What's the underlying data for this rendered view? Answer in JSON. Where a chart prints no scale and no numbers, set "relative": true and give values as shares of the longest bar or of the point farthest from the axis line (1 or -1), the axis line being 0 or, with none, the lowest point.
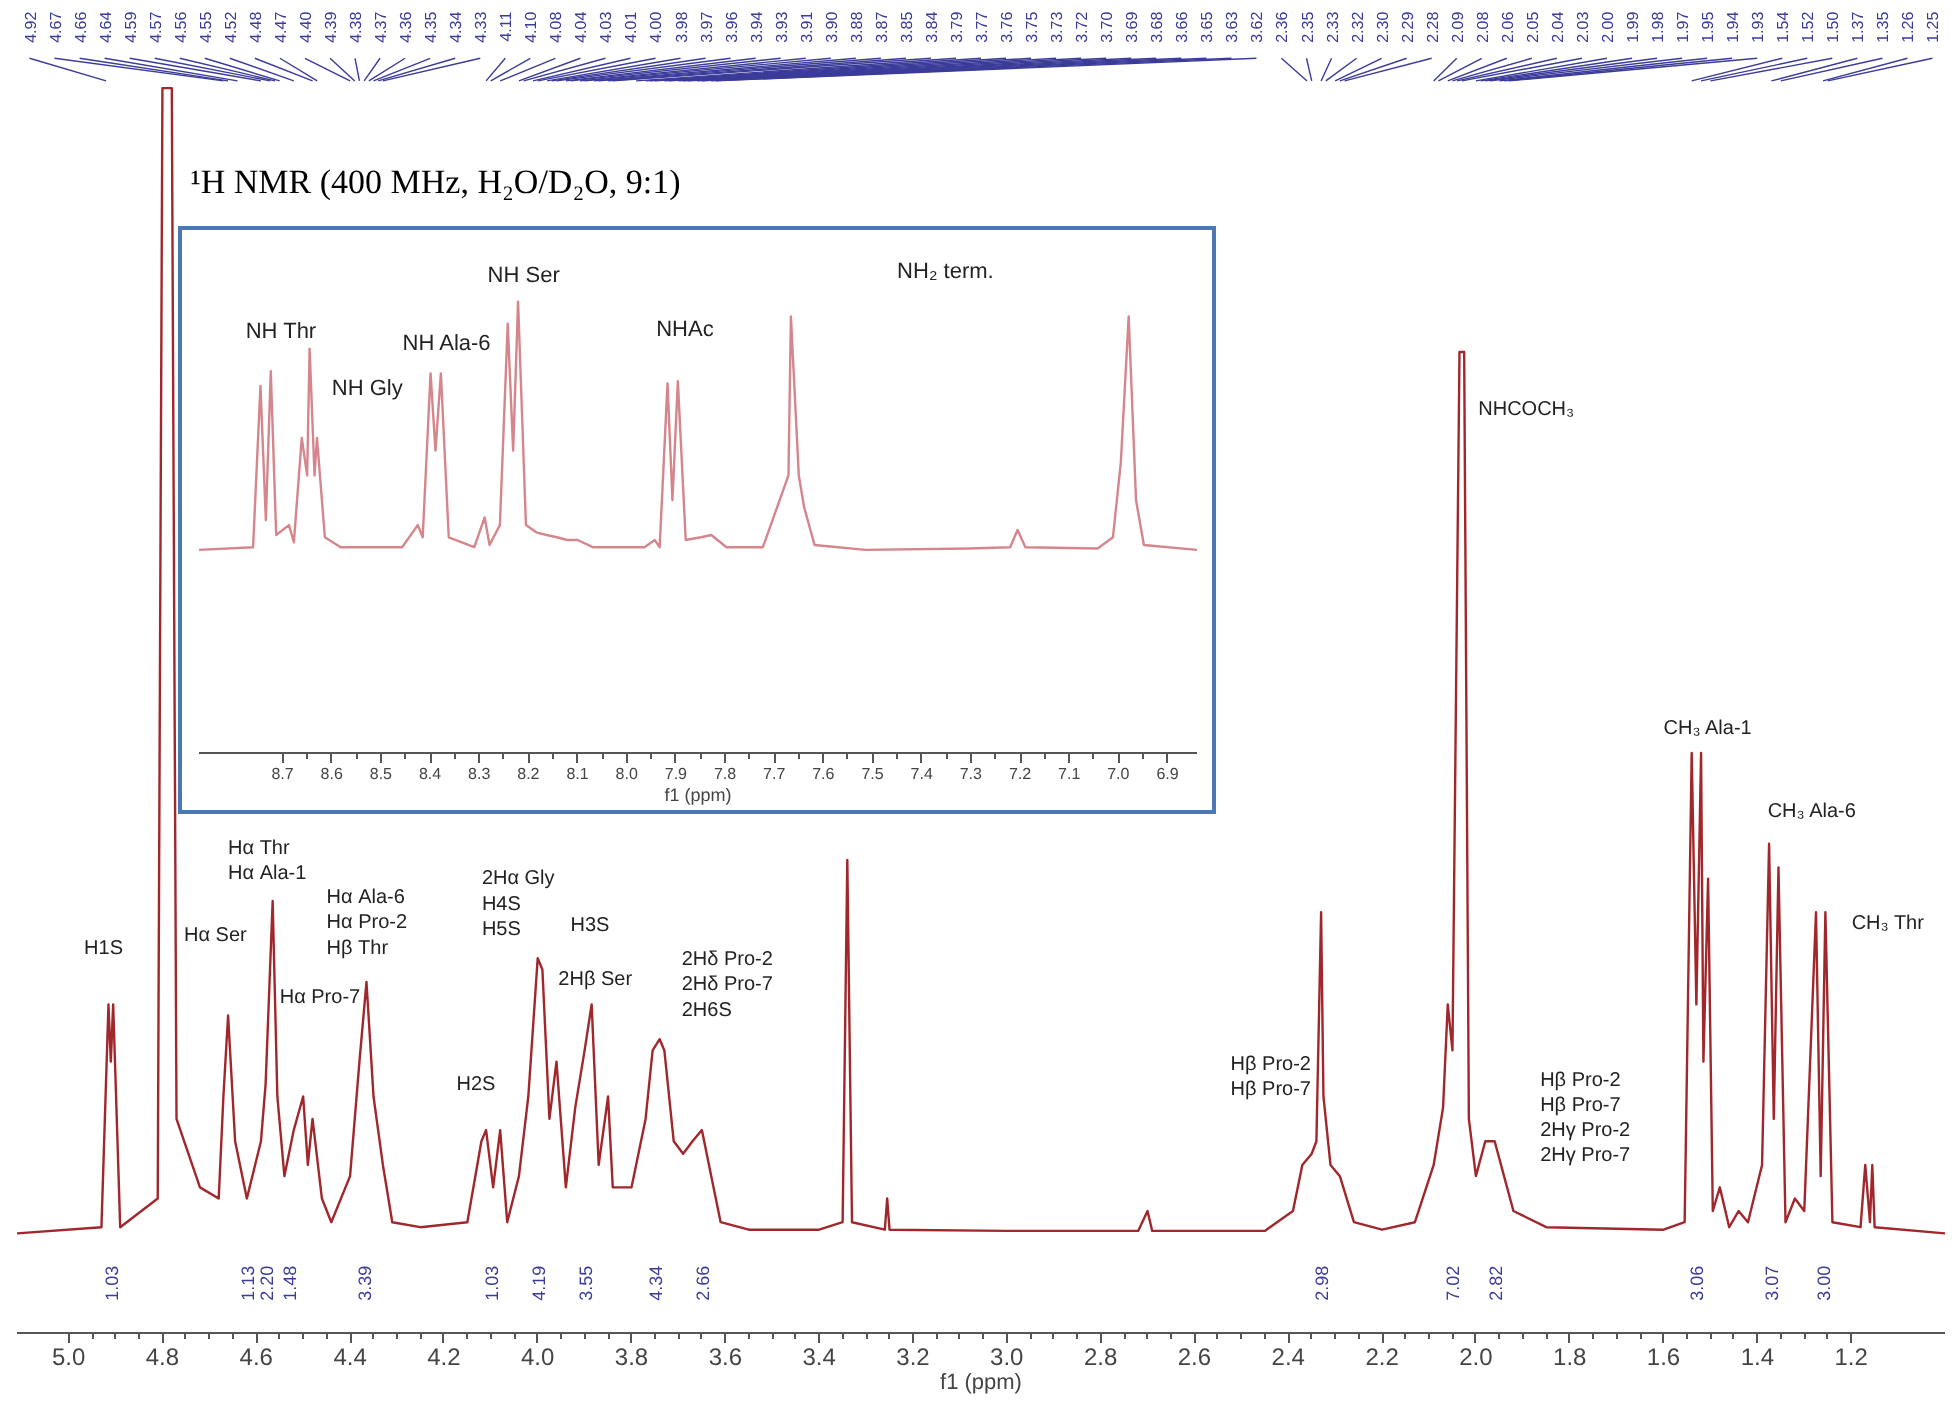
{
  "chart_data": [
    {
      "type": "line",
      "relative": true,
      "title": "¹H NMR (400 MHz, H₂O/D₂O, 9:1)",
      "xlabel": "f1 (ppm)",
      "color": "#a0282d",
      "xlim": [
        5.11,
        1.0
      ],
      "xticks": [
        {
          "value": 5,
          "label": "5.0"
        },
        4.8,
        4.6,
        4.4,
        4.2,
        {
          "value": 4,
          "label": "4.0"
        },
        3.8,
        3.6,
        3.4,
        3.2,
        {
          "value": 3,
          "label": "3.0"
        },
        2.8,
        2.6,
        2.4,
        2.2,
        {
          "value": 2,
          "label": "2.0"
        },
        1.8,
        1.6,
        1.4,
        1.2
      ],
      "x": [
        5.11,
        4.93,
        4.915,
        4.91,
        4.905,
        4.89,
        4.81,
        4.8,
        4.78,
        4.77,
        4.72,
        4.68,
        4.67,
        4.66,
        4.645,
        4.62,
        4.59,
        4.58,
        4.565,
        4.555,
        4.54,
        4.52,
        4.5,
        4.49,
        4.48,
        4.46,
        4.44,
        4.4,
        4.38,
        4.365,
        4.35,
        4.33,
        4.31,
        4.25,
        4.15,
        4.12,
        4.11,
        4.095,
        4.08,
        4.065,
        4.04,
        4.02,
        4.0,
        3.99,
        3.975,
        3.96,
        3.94,
        3.92,
        3.9,
        3.885,
        3.87,
        3.85,
        3.84,
        3.8,
        3.77,
        3.755,
        3.74,
        3.73,
        3.71,
        3.69,
        3.67,
        3.65,
        3.63,
        3.61,
        3.55,
        3.4,
        3.35,
        3.34,
        3.33,
        3.26,
        3.255,
        3.25,
        3.0,
        2.72,
        2.7,
        2.69,
        2.45,
        2.39,
        2.37,
        2.35,
        2.34,
        2.33,
        2.325,
        2.31,
        2.29,
        2.26,
        2.2,
        2.13,
        2.09,
        2.07,
        2.06,
        2.05,
        2.035,
        2.025,
        2.015,
        2.0,
        1.98,
        1.96,
        1.94,
        1.92,
        1.85,
        1.6,
        1.555,
        1.54,
        1.53,
        1.52,
        1.515,
        1.505,
        1.495,
        1.48,
        1.46,
        1.44,
        1.42,
        1.39,
        1.375,
        1.365,
        1.355,
        1.34,
        1.32,
        1.3,
        1.275,
        1.265,
        1.255,
        1.24,
        1.18,
        1.17,
        1.16,
        1.155,
        1.15,
        1.0
      ],
      "values": [
        0.08,
        0.085,
        0.264,
        0.218,
        0.264,
        0.085,
        0.108,
        1.0,
        1.0,
        0.172,
        0.117,
        0.108,
        0.19,
        0.255,
        0.154,
        0.108,
        0.154,
        0.2,
        0.347,
        0.19,
        0.126,
        0.163,
        0.19,
        0.135,
        0.172,
        0.108,
        0.089,
        0.126,
        0.218,
        0.282,
        0.19,
        0.135,
        0.089,
        0.085,
        0.089,
        0.154,
        0.163,
        0.117,
        0.163,
        0.089,
        0.126,
        0.19,
        0.301,
        0.292,
        0.172,
        0.218,
        0.117,
        0.181,
        0.227,
        0.264,
        0.135,
        0.19,
        0.117,
        0.117,
        0.172,
        0.227,
        0.236,
        0.227,
        0.154,
        0.144,
        0.154,
        0.163,
        0.126,
        0.089,
        0.083,
        0.083,
        0.089,
        0.38,
        0.089,
        0.083,
        0.108,
        0.083,
        0.082,
        0.082,
        0.098,
        0.082,
        0.082,
        0.098,
        0.135,
        0.144,
        0.154,
        0.338,
        0.19,
        0.135,
        0.126,
        0.089,
        0.083,
        0.089,
        0.135,
        0.181,
        0.264,
        0.227,
        0.788,
        0.788,
        0.172,
        0.126,
        0.154,
        0.154,
        0.126,
        0.098,
        0.085,
        0.083,
        0.089,
        0.466,
        0.264,
        0.466,
        0.218,
        0.365,
        0.098,
        0.117,
        0.085,
        0.098,
        0.089,
        0.135,
        0.393,
        0.172,
        0.374,
        0.089,
        0.108,
        0.098,
        0.338,
        0.126,
        0.338,
        0.089,
        0.085,
        0.135,
        0.089,
        0.135,
        0.085,
        0.08
      ],
      "annotations": [
        "H1S",
        "Hα Ser",
        "Hα Thr\nHα Ala-1",
        "Hα Pro-7",
        "Hα Ala-6\nHα Pro-2\nHβ Thr",
        "H2S",
        "2Hα Gly\nH4S\nH5S",
        "H3S",
        "2Hβ Ser",
        "2Hδ Pro-2\n2Hδ Pro-7\n2H6S",
        "Hβ Pro-2\nHβ Pro-7",
        "NHCOCH₃",
        "Hβ Pro-2\nHβ Pro-7\n2Hγ Pro-2\n2Hγ Pro-7",
        "CH₃ Ala-1",
        "CH₃ Ala-6",
        "CH₃ Thr",
        "1.03",
        "1.13",
        "2.20",
        "1.48",
        "3.39",
        "1.03",
        "4.19",
        "3.55",
        "4.34",
        "2.66",
        "2.98",
        "7.02",
        "2.82",
        "3.06",
        "3.07",
        "3.00",
        {
          "text": "4.92",
          "x": 4.92
        },
        {
          "text": "4.67",
          "x": 4.67
        },
        {
          "text": "4.66",
          "x": 4.66
        },
        {
          "text": "4.64",
          "x": 4.64
        },
        {
          "text": "4.59",
          "x": 4.59
        },
        {
          "text": "4.57",
          "x": 4.57
        },
        {
          "text": "4.56",
          "x": 4.56
        },
        {
          "text": "4.55",
          "x": 4.55
        },
        {
          "text": "4.52",
          "x": 4.52
        },
        {
          "text": "4.48",
          "x": 4.48
        },
        {
          "text": "4.47",
          "x": 4.47
        },
        {
          "text": "4.40",
          "x": 4.4
        },
        {
          "text": "4.39",
          "x": 4.39
        },
        {
          "text": "4.38",
          "x": 4.38
        },
        {
          "text": "4.37",
          "x": 4.37
        },
        {
          "text": "4.36",
          "x": 4.36
        },
        {
          "text": "4.35",
          "x": 4.35
        },
        {
          "text": "4.34",
          "x": 4.34
        },
        {
          "text": "4.33",
          "x": 4.33
        },
        {
          "text": "4.11",
          "x": 4.11
        },
        {
          "text": "4.10",
          "x": 4.1
        },
        {
          "text": "4.08",
          "x": 4.08
        },
        {
          "text": "4.04",
          "x": 4.04
        },
        {
          "text": "4.03",
          "x": 4.03
        },
        {
          "text": "4.01",
          "x": 4.01
        },
        {
          "text": "4.00",
          "x": 4.0
        },
        {
          "text": "3.98",
          "x": 3.98
        },
        {
          "text": "3.97",
          "x": 3.97
        },
        {
          "text": "3.96",
          "x": 3.96
        },
        {
          "text": "3.94",
          "x": 3.94
        },
        {
          "text": "3.93",
          "x": 3.93
        },
        {
          "text": "3.91",
          "x": 3.91
        },
        {
          "text": "3.90",
          "x": 3.9
        },
        {
          "text": "3.88",
          "x": 3.88
        },
        {
          "text": "3.87",
          "x": 3.87
        },
        {
          "text": "3.85",
          "x": 3.85
        },
        {
          "text": "3.84",
          "x": 3.84
        },
        {
          "text": "3.79",
          "x": 3.79
        },
        {
          "text": "3.77",
          "x": 3.77
        },
        {
          "text": "3.76",
          "x": 3.76
        },
        {
          "text": "3.75",
          "x": 3.75
        },
        {
          "text": "3.73",
          "x": 3.73
        },
        {
          "text": "3.72",
          "x": 3.72
        },
        {
          "text": "3.70",
          "x": 3.7
        },
        {
          "text": "3.69",
          "x": 3.69
        },
        {
          "text": "3.68",
          "x": 3.68
        },
        {
          "text": "3.66",
          "x": 3.66
        },
        {
          "text": "3.65",
          "x": 3.65
        },
        {
          "text": "3.63",
          "x": 3.63
        },
        {
          "text": "3.62",
          "x": 3.62
        },
        {
          "text": "2.36",
          "x": 2.36
        },
        {
          "text": "2.35",
          "x": 2.35
        },
        {
          "text": "2.33",
          "x": 2.33
        },
        {
          "text": "2.32",
          "x": 2.32
        },
        {
          "text": "2.30",
          "x": 2.3
        },
        {
          "text": "2.29",
          "x": 2.29
        },
        {
          "text": "2.28",
          "x": 2.28
        },
        {
          "text": "2.09",
          "x": 2.09
        },
        {
          "text": "2.08",
          "x": 2.08
        },
        {
          "text": "2.06",
          "x": 2.06
        },
        {
          "text": "2.05",
          "x": 2.05
        },
        {
          "text": "2.04",
          "x": 2.04
        },
        {
          "text": "2.03",
          "x": 2.03
        },
        {
          "text": "2.00",
          "x": 2.0
        },
        {
          "text": "1.99",
          "x": 1.99
        },
        {
          "text": "1.98",
          "x": 1.98
        },
        {
          "text": "1.97",
          "x": 1.97
        },
        {
          "text": "1.95",
          "x": 1.95
        },
        {
          "text": "1.94",
          "x": 1.94
        },
        {
          "text": "1.93",
          "x": 1.93
        },
        {
          "text": "1.54",
          "x": 1.54
        },
        {
          "text": "1.52",
          "x": 1.52
        },
        {
          "text": "1.50",
          "x": 1.5
        },
        {
          "text": "1.37",
          "x": 1.37
        },
        {
          "text": "1.35",
          "x": 1.35
        },
        {
          "text": "1.26",
          "x": 1.26
        },
        {
          "text": "1.25",
          "x": 1.25
        }
      ]
    },
    {
      "type": "line",
      "relative": true,
      "xlabel": "f1 (ppm)",
      "color": "#d4868c",
      "xlim": [
        8.87,
        6.84
      ],
      "xticks": [
        8.7,
        8.6,
        8.5,
        8.4,
        8.3,
        8.2,
        8.1,
        {
          "value": 8,
          "label": "8.0"
        },
        7.9,
        7.8,
        7.7,
        7.6,
        7.5,
        7.4,
        7.3,
        7.2,
        7.1,
        {
          "value": 7,
          "label": "7.0"
        },
        6.9
      ],
      "x": [
        8.87,
        8.76,
        8.745,
        8.734,
        8.724,
        8.713,
        8.687,
        8.677,
        8.661,
        8.65,
        8.645,
        8.635,
        8.63,
        8.614,
        8.582,
        8.457,
        8.425,
        8.415,
        8.399,
        8.389,
        8.378,
        8.362,
        8.31,
        8.289,
        8.279,
        8.258,
        8.242,
        8.231,
        8.221,
        8.205,
        8.184,
        8.163,
        8.142,
        8.121,
        8.1,
        8.069,
        7.964,
        7.943,
        7.933,
        7.917,
        7.907,
        7.896,
        7.88,
        7.849,
        7.828,
        7.797,
        7.723,
        7.671,
        7.666,
        7.65,
        7.639,
        7.618,
        7.514,
        7.304,
        7.22,
        7.205,
        7.189,
        7.042,
        7.011,
        6.995,
        6.979,
        6.964,
        6.948,
        6.84
      ],
      "values": [
        0.45,
        0.456,
        0.813,
        0.516,
        0.846,
        0.483,
        0.505,
        0.467,
        0.698,
        0.615,
        0.896,
        0.615,
        0.698,
        0.478,
        0.456,
        0.456,
        0.505,
        0.478,
        0.841,
        0.67,
        0.841,
        0.478,
        0.456,
        0.522,
        0.461,
        0.505,
        0.951,
        0.67,
        1.0,
        0.505,
        0.489,
        0.483,
        0.478,
        0.472,
        0.472,
        0.456,
        0.456,
        0.472,
        0.456,
        0.819,
        0.56,
        0.824,
        0.472,
        0.478,
        0.483,
        0.456,
        0.456,
        0.615,
        0.967,
        0.615,
        0.544,
        0.461,
        0.45,
        0.453,
        0.456,
        0.494,
        0.456,
        0.453,
        0.478,
        0.643,
        0.967,
        0.56,
        0.461,
        0.45
      ],
      "annotations": [
        "NH Thr",
        "NH Gly",
        "NH Ala-6",
        "NH Ser",
        "NHAc",
        "NH₂ term."
      ]
    }
  ]
}
